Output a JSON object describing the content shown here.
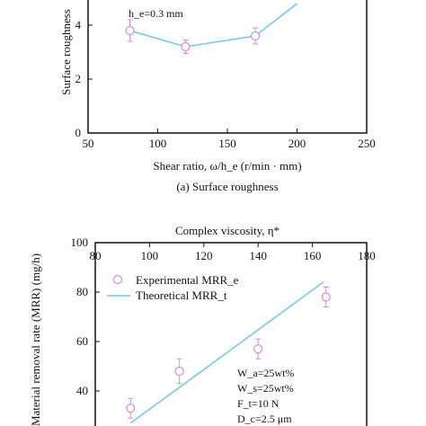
{
  "chart_data": [
    {
      "type": "line",
      "title": "",
      "caption": "(a) Surface roughness",
      "xlabel": "Shear ratio, ω/h_e (r/min · mm)",
      "ylabel": "Surface roughness",
      "xlim": [
        50,
        250
      ],
      "ylim": [
        0,
        5
      ],
      "xticks": [
        "50",
        "100",
        "150",
        "200",
        "250"
      ],
      "yticks": [
        "0",
        "2",
        "4"
      ],
      "annotations": [
        "h_e=0.3 mm"
      ],
      "series": [
        {
          "x": [
            80,
            120,
            170,
            200
          ],
          "y": [
            3.8,
            3.2,
            3.6,
            4.8
          ],
          "yerr": [
            0.4,
            0.25,
            0.3,
            0
          ],
          "markers": [
            true,
            true,
            true,
            false
          ]
        }
      ],
      "colors": {
        "line": "#6ec6ea",
        "marker": "#d98bd9"
      }
    },
    {
      "type": "scatter",
      "title": "Complex viscosity, η*",
      "ylabel": "Material removal rate (MRR) (mg/h)",
      "xlim": [
        80,
        180
      ],
      "ylim": [
        20,
        100
      ],
      "xticks": [
        "80",
        "100",
        "120",
        "140",
        "160",
        "180"
      ],
      "yticks": [
        "20",
        "40",
        "60",
        "80",
        "100"
      ],
      "legend": [
        "Experimental MRR_e",
        "Theoretical MRR_t"
      ],
      "legend_position": "top-left",
      "annotations": [
        "W_a=25wt%",
        "W_s=25wt%",
        "F_t=10 N",
        "D_c=2.5 μm"
      ],
      "series": [
        {
          "name": "Experimental MRR_e",
          "x": [
            93,
            111,
            140,
            165
          ],
          "y": [
            33,
            48,
            57,
            78
          ],
          "yerr": [
            4,
            5,
            4,
            4
          ]
        },
        {
          "name": "Theoretical MRR_t",
          "x": [
            93,
            164
          ],
          "y": [
            27,
            84
          ]
        }
      ],
      "colors": {
        "line": "#6ec6ea",
        "marker": "#d98bd9"
      }
    }
  ]
}
